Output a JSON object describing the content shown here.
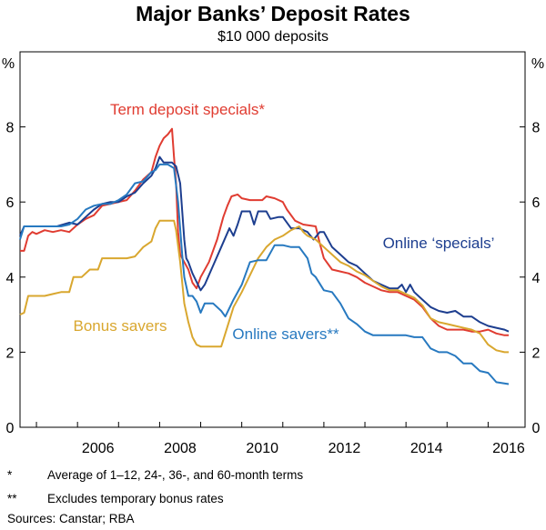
{
  "chart_data": {
    "type": "line",
    "title": "Major Banks’ Deposit Rates",
    "subtitle": "$10 000 deposits",
    "ylabel_left": "%",
    "ylabel_right": "%",
    "ylim": [
      0,
      10
    ],
    "yticks": [
      0,
      2,
      4,
      6,
      8
    ],
    "xlim": [
      2004.6,
      2016.9
    ],
    "xticks": [
      "2006",
      "2008",
      "2010",
      "2012",
      "2014",
      "2016"
    ],
    "grid": false,
    "series": [
      {
        "name": "Term deposit specials*",
        "color": "#e03c31",
        "points": [
          [
            2004.6,
            4.7
          ],
          [
            2004.7,
            4.7
          ],
          [
            2004.8,
            5.1
          ],
          [
            2004.9,
            5.2
          ],
          [
            2005.0,
            5.15
          ],
          [
            2005.2,
            5.25
          ],
          [
            2005.4,
            5.2
          ],
          [
            2005.6,
            5.25
          ],
          [
            2005.8,
            5.2
          ],
          [
            2006.0,
            5.4
          ],
          [
            2006.2,
            5.55
          ],
          [
            2006.4,
            5.65
          ],
          [
            2006.6,
            5.9
          ],
          [
            2006.8,
            5.95
          ],
          [
            2007.0,
            6.0
          ],
          [
            2007.2,
            6.05
          ],
          [
            2007.4,
            6.3
          ],
          [
            2007.6,
            6.6
          ],
          [
            2007.8,
            6.8
          ],
          [
            2007.9,
            7.2
          ],
          [
            2008.0,
            7.5
          ],
          [
            2008.1,
            7.7
          ],
          [
            2008.2,
            7.8
          ],
          [
            2008.3,
            7.95
          ],
          [
            2008.35,
            7.2
          ],
          [
            2008.4,
            6.5
          ],
          [
            2008.45,
            5.2
          ],
          [
            2008.5,
            4.6
          ],
          [
            2008.6,
            4.4
          ],
          [
            2008.7,
            4.2
          ],
          [
            2008.8,
            3.85
          ],
          [
            2008.9,
            3.7
          ],
          [
            2009.0,
            4.0
          ],
          [
            2009.2,
            4.4
          ],
          [
            2009.4,
            5.0
          ],
          [
            2009.55,
            5.6
          ],
          [
            2009.65,
            5.9
          ],
          [
            2009.75,
            6.15
          ],
          [
            2009.9,
            6.2
          ],
          [
            2010.0,
            6.1
          ],
          [
            2010.2,
            6.05
          ],
          [
            2010.4,
            6.05
          ],
          [
            2010.5,
            6.05
          ],
          [
            2010.6,
            6.15
          ],
          [
            2010.8,
            6.1
          ],
          [
            2011.0,
            6.0
          ],
          [
            2011.1,
            5.8
          ],
          [
            2011.3,
            5.5
          ],
          [
            2011.5,
            5.4
          ],
          [
            2011.8,
            5.35
          ],
          [
            2011.9,
            4.9
          ],
          [
            2012.0,
            4.5
          ],
          [
            2012.2,
            4.2
          ],
          [
            2012.4,
            4.15
          ],
          [
            2012.6,
            4.1
          ],
          [
            2012.8,
            4.0
          ],
          [
            2013.0,
            3.85
          ],
          [
            2013.2,
            3.75
          ],
          [
            2013.4,
            3.65
          ],
          [
            2013.6,
            3.6
          ],
          [
            2013.8,
            3.6
          ],
          [
            2014.0,
            3.5
          ],
          [
            2014.2,
            3.4
          ],
          [
            2014.4,
            3.2
          ],
          [
            2014.6,
            2.9
          ],
          [
            2014.8,
            2.7
          ],
          [
            2015.0,
            2.6
          ],
          [
            2015.2,
            2.6
          ],
          [
            2015.4,
            2.6
          ],
          [
            2015.6,
            2.55
          ],
          [
            2015.8,
            2.55
          ],
          [
            2016.0,
            2.6
          ],
          [
            2016.2,
            2.5
          ],
          [
            2016.4,
            2.45
          ],
          [
            2016.5,
            2.45
          ]
        ]
      },
      {
        "name": "Online ‘specials’",
        "color": "#1d3e8f",
        "points": [
          [
            2004.6,
            5.1
          ],
          [
            2004.7,
            5.35
          ],
          [
            2004.8,
            5.35
          ],
          [
            2005.0,
            5.35
          ],
          [
            2005.2,
            5.35
          ],
          [
            2005.5,
            5.35
          ],
          [
            2005.8,
            5.45
          ],
          [
            2006.0,
            5.4
          ],
          [
            2006.2,
            5.6
          ],
          [
            2006.4,
            5.8
          ],
          [
            2006.6,
            5.95
          ],
          [
            2006.8,
            6.0
          ],
          [
            2007.0,
            6.0
          ],
          [
            2007.2,
            6.15
          ],
          [
            2007.4,
            6.25
          ],
          [
            2007.6,
            6.5
          ],
          [
            2007.8,
            6.7
          ],
          [
            2007.9,
            6.9
          ],
          [
            2008.0,
            7.2
          ],
          [
            2008.1,
            7.05
          ],
          [
            2008.2,
            7.05
          ],
          [
            2008.3,
            7.05
          ],
          [
            2008.4,
            6.95
          ],
          [
            2008.5,
            6.5
          ],
          [
            2008.6,
            5.0
          ],
          [
            2008.65,
            4.5
          ],
          [
            2008.7,
            4.4
          ],
          [
            2008.8,
            4.1
          ],
          [
            2009.0,
            3.65
          ],
          [
            2009.1,
            3.8
          ],
          [
            2009.3,
            4.3
          ],
          [
            2009.5,
            4.8
          ],
          [
            2009.7,
            5.3
          ],
          [
            2009.8,
            5.1
          ],
          [
            2009.9,
            5.4
          ],
          [
            2010.0,
            5.75
          ],
          [
            2010.2,
            5.75
          ],
          [
            2010.3,
            5.4
          ],
          [
            2010.4,
            5.75
          ],
          [
            2010.6,
            5.75
          ],
          [
            2010.7,
            5.55
          ],
          [
            2010.9,
            5.6
          ],
          [
            2011.0,
            5.6
          ],
          [
            2011.2,
            5.3
          ],
          [
            2011.4,
            5.3
          ],
          [
            2011.6,
            5.2
          ],
          [
            2011.75,
            5.0
          ],
          [
            2011.9,
            5.2
          ],
          [
            2012.0,
            5.2
          ],
          [
            2012.2,
            4.8
          ],
          [
            2012.4,
            4.6
          ],
          [
            2012.6,
            4.4
          ],
          [
            2012.8,
            4.3
          ],
          [
            2013.0,
            4.1
          ],
          [
            2013.2,
            3.9
          ],
          [
            2013.4,
            3.8
          ],
          [
            2013.6,
            3.7
          ],
          [
            2013.8,
            3.7
          ],
          [
            2013.9,
            3.8
          ],
          [
            2014.0,
            3.6
          ],
          [
            2014.1,
            3.8
          ],
          [
            2014.2,
            3.6
          ],
          [
            2014.4,
            3.4
          ],
          [
            2014.6,
            3.2
          ],
          [
            2014.8,
            3.1
          ],
          [
            2015.0,
            3.05
          ],
          [
            2015.2,
            3.1
          ],
          [
            2015.4,
            2.95
          ],
          [
            2015.6,
            2.95
          ],
          [
            2015.8,
            2.8
          ],
          [
            2016.0,
            2.7
          ],
          [
            2016.2,
            2.65
          ],
          [
            2016.4,
            2.6
          ],
          [
            2016.5,
            2.55
          ]
        ]
      },
      {
        "name": "Bonus savers",
        "color": "#d9a72f",
        "points": [
          [
            2004.6,
            3.0
          ],
          [
            2004.7,
            3.05
          ],
          [
            2004.8,
            3.5
          ],
          [
            2005.0,
            3.5
          ],
          [
            2005.2,
            3.5
          ],
          [
            2005.4,
            3.55
          ],
          [
            2005.6,
            3.6
          ],
          [
            2005.8,
            3.6
          ],
          [
            2005.9,
            4.0
          ],
          [
            2006.1,
            4.0
          ],
          [
            2006.3,
            4.2
          ],
          [
            2006.5,
            4.2
          ],
          [
            2006.6,
            4.5
          ],
          [
            2006.8,
            4.5
          ],
          [
            2007.0,
            4.5
          ],
          [
            2007.2,
            4.5
          ],
          [
            2007.4,
            4.55
          ],
          [
            2007.6,
            4.8
          ],
          [
            2007.8,
            4.95
          ],
          [
            2007.9,
            5.3
          ],
          [
            2008.0,
            5.5
          ],
          [
            2008.2,
            5.5
          ],
          [
            2008.35,
            5.5
          ],
          [
            2008.4,
            5.25
          ],
          [
            2008.5,
            4.4
          ],
          [
            2008.6,
            3.3
          ],
          [
            2008.7,
            2.8
          ],
          [
            2008.8,
            2.4
          ],
          [
            2008.9,
            2.2
          ],
          [
            2009.0,
            2.15
          ],
          [
            2009.2,
            2.15
          ],
          [
            2009.4,
            2.15
          ],
          [
            2009.5,
            2.15
          ],
          [
            2009.6,
            2.5
          ],
          [
            2009.8,
            3.2
          ],
          [
            2010.0,
            3.6
          ],
          [
            2010.2,
            4.05
          ],
          [
            2010.4,
            4.5
          ],
          [
            2010.6,
            4.8
          ],
          [
            2010.8,
            5.0
          ],
          [
            2011.0,
            5.1
          ],
          [
            2011.2,
            5.25
          ],
          [
            2011.4,
            5.35
          ],
          [
            2011.5,
            5.2
          ],
          [
            2011.6,
            5.1
          ],
          [
            2011.8,
            5.0
          ],
          [
            2012.0,
            4.8
          ],
          [
            2012.2,
            4.6
          ],
          [
            2012.4,
            4.4
          ],
          [
            2012.6,
            4.3
          ],
          [
            2012.8,
            4.15
          ],
          [
            2013.0,
            4.05
          ],
          [
            2013.2,
            3.9
          ],
          [
            2013.4,
            3.75
          ],
          [
            2013.6,
            3.65
          ],
          [
            2013.8,
            3.65
          ],
          [
            2014.0,
            3.55
          ],
          [
            2014.2,
            3.45
          ],
          [
            2014.4,
            3.25
          ],
          [
            2014.6,
            2.9
          ],
          [
            2014.8,
            2.8
          ],
          [
            2015.0,
            2.75
          ],
          [
            2015.2,
            2.7
          ],
          [
            2015.4,
            2.65
          ],
          [
            2015.6,
            2.6
          ],
          [
            2015.8,
            2.5
          ],
          [
            2016.0,
            2.2
          ],
          [
            2016.2,
            2.05
          ],
          [
            2016.4,
            2.0
          ],
          [
            2016.5,
            2.0
          ]
        ]
      },
      {
        "name": "Online savers**",
        "color": "#2779c0",
        "points": [
          [
            2004.6,
            5.0
          ],
          [
            2004.7,
            5.35
          ],
          [
            2004.8,
            5.35
          ],
          [
            2005.0,
            5.35
          ],
          [
            2005.3,
            5.35
          ],
          [
            2005.6,
            5.35
          ],
          [
            2005.8,
            5.4
          ],
          [
            2006.0,
            5.55
          ],
          [
            2006.2,
            5.8
          ],
          [
            2006.4,
            5.9
          ],
          [
            2006.6,
            5.95
          ],
          [
            2006.8,
            5.95
          ],
          [
            2007.0,
            6.05
          ],
          [
            2007.2,
            6.2
          ],
          [
            2007.4,
            6.5
          ],
          [
            2007.6,
            6.55
          ],
          [
            2007.8,
            6.8
          ],
          [
            2007.9,
            6.85
          ],
          [
            2008.0,
            7.0
          ],
          [
            2008.2,
            7.0
          ],
          [
            2008.35,
            6.9
          ],
          [
            2008.45,
            6.0
          ],
          [
            2008.55,
            4.6
          ],
          [
            2008.6,
            4.0
          ],
          [
            2008.7,
            3.5
          ],
          [
            2008.8,
            3.5
          ],
          [
            2008.9,
            3.35
          ],
          [
            2009.0,
            3.05
          ],
          [
            2009.1,
            3.3
          ],
          [
            2009.3,
            3.3
          ],
          [
            2009.5,
            3.1
          ],
          [
            2009.6,
            2.95
          ],
          [
            2009.8,
            3.4
          ],
          [
            2010.0,
            3.8
          ],
          [
            2010.1,
            4.1
          ],
          [
            2010.2,
            4.4
          ],
          [
            2010.4,
            4.45
          ],
          [
            2010.6,
            4.45
          ],
          [
            2010.8,
            4.85
          ],
          [
            2011.0,
            4.85
          ],
          [
            2011.2,
            4.8
          ],
          [
            2011.4,
            4.8
          ],
          [
            2011.6,
            4.5
          ],
          [
            2011.7,
            4.1
          ],
          [
            2011.8,
            4.0
          ],
          [
            2012.0,
            3.65
          ],
          [
            2012.2,
            3.6
          ],
          [
            2012.4,
            3.3
          ],
          [
            2012.6,
            2.9
          ],
          [
            2012.8,
            2.75
          ],
          [
            2013.0,
            2.55
          ],
          [
            2013.2,
            2.45
          ],
          [
            2013.4,
            2.45
          ],
          [
            2013.6,
            2.45
          ],
          [
            2013.8,
            2.45
          ],
          [
            2014.0,
            2.45
          ],
          [
            2014.2,
            2.4
          ],
          [
            2014.4,
            2.4
          ],
          [
            2014.6,
            2.1
          ],
          [
            2014.8,
            2.0
          ],
          [
            2015.0,
            2.0
          ],
          [
            2015.2,
            1.9
          ],
          [
            2015.4,
            1.7
          ],
          [
            2015.6,
            1.7
          ],
          [
            2015.8,
            1.5
          ],
          [
            2016.0,
            1.45
          ],
          [
            2016.2,
            1.2
          ],
          [
            2016.5,
            1.15
          ]
        ]
      }
    ],
    "annotations": [
      {
        "text": "Term deposit specials*",
        "color": "#e03c31"
      },
      {
        "text": "Online ‘specials’",
        "color": "#1d3e8f"
      },
      {
        "text": "Bonus savers",
        "color": "#d9a72f"
      },
      {
        "text": "Online savers**",
        "color": "#2779c0"
      }
    ]
  },
  "notes": [
    {
      "mark": "*",
      "text": "Average of 1–12, 24-, 36-, and 60-month terms"
    },
    {
      "mark": "**",
      "text": "Excludes temporary bonus rates"
    }
  ],
  "sources": "Sources:   Canstar; RBA"
}
